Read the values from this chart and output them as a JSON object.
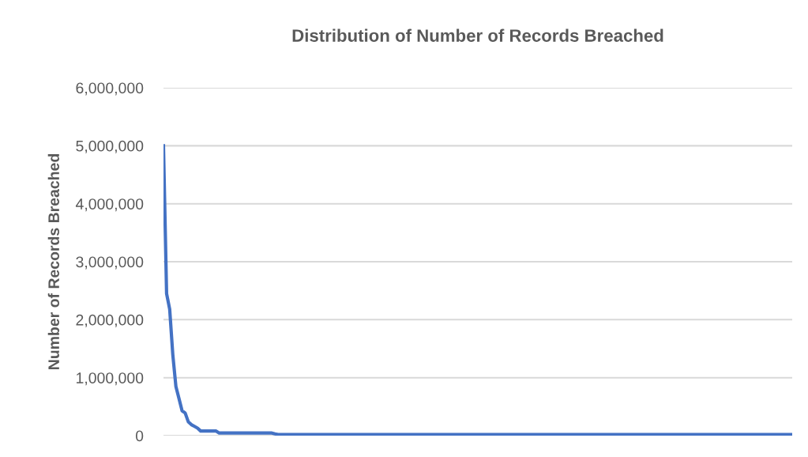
{
  "chart_data": {
    "type": "line",
    "title": "Distribution of Number of Records Breached",
    "ylabel": "Number of Records Breached",
    "categories": [
      null,
      null,
      null,
      null,
      null,
      null,
      null,
      null,
      null,
      null,
      null,
      null,
      null,
      null,
      null,
      null,
      null,
      null,
      null,
      null,
      null,
      null,
      null,
      null,
      null,
      null,
      null,
      null,
      null,
      null,
      null,
      null,
      null,
      null,
      null,
      null,
      null,
      null,
      null,
      null,
      null,
      null,
      null,
      null,
      null,
      null,
      null,
      null,
      null,
      null,
      null,
      null,
      null,
      null,
      null,
      null,
      null,
      null,
      null,
      null,
      null,
      null,
      null,
      null,
      null,
      null,
      null,
      null,
      null,
      null,
      null,
      null,
      null,
      null,
      null,
      null,
      null,
      null,
      null,
      null,
      null,
      null,
      null,
      null,
      null,
      null,
      null,
      null,
      null,
      null,
      null,
      null,
      null,
      null,
      null,
      null,
      null,
      null,
      null,
      null,
      null,
      null,
      null,
      null,
      null,
      null,
      null,
      null,
      null,
      null,
      null,
      null,
      null,
      null,
      null,
      null,
      null,
      null,
      null,
      null,
      null,
      null,
      null,
      null,
      null,
      null,
      null,
      null,
      null,
      null,
      null,
      null,
      null,
      null,
      null,
      null,
      null,
      null,
      null,
      null,
      null,
      null,
      null,
      null,
      null,
      null,
      null,
      null,
      null,
      null,
      null,
      null,
      null,
      null,
      null,
      null,
      null,
      null,
      null,
      null,
      null,
      null,
      null,
      null,
      null,
      null,
      null,
      null,
      null,
      null,
      null,
      null,
      null,
      null,
      null,
      null,
      null,
      null,
      null,
      null,
      null,
      null,
      null,
      null,
      null,
      null,
      null,
      null,
      null,
      null,
      null,
      null,
      null,
      null,
      null,
      null,
      null,
      null,
      null,
      null,
      null,
      null,
      null,
      null
    ],
    "series": [
      {
        "color": "#4472c4",
        "values": [
          5000000,
          2450000,
          2180000,
          1400000,
          850000,
          640000,
          430000,
          390000,
          240000,
          190000,
          160000,
          130000,
          80000,
          80000,
          80000,
          80000,
          80000,
          80000,
          45000,
          45000,
          45000,
          45000,
          45000,
          45000,
          45000,
          45000,
          45000,
          45000,
          45000,
          45000,
          45000,
          45000,
          45000,
          45000,
          45000,
          45000,
          30000,
          20000,
          20000,
          20000,
          20000,
          20000,
          20000,
          20000,
          20000,
          20000,
          20000,
          20000,
          20000,
          20000,
          20000,
          20000,
          20000,
          20000,
          20000,
          20000,
          20000,
          20000,
          20000,
          20000,
          20000,
          20000,
          20000,
          20000,
          20000,
          20000,
          20000,
          20000,
          20000,
          20000,
          20000,
          20000,
          20000,
          20000,
          20000,
          20000,
          20000,
          20000,
          20000,
          20000,
          20000,
          20000,
          20000,
          20000,
          20000,
          20000,
          20000,
          20000,
          20000,
          20000,
          20000,
          20000,
          20000,
          20000,
          20000,
          20000,
          20000,
          20000,
          20000,
          20000,
          20000,
          20000,
          20000,
          20000,
          20000,
          20000,
          20000,
          20000,
          20000,
          20000,
          20000,
          20000,
          20000,
          20000,
          20000,
          20000,
          20000,
          20000,
          20000,
          20000,
          20000,
          20000,
          20000,
          20000,
          20000,
          20000,
          20000,
          20000,
          20000,
          20000,
          20000,
          20000,
          20000,
          20000,
          20000,
          20000,
          20000,
          20000,
          20000,
          20000,
          20000,
          20000,
          20000,
          20000,
          20000,
          20000,
          20000,
          20000,
          20000,
          20000,
          20000,
          20000,
          20000,
          20000,
          20000,
          20000,
          20000,
          20000,
          20000,
          20000,
          20000,
          20000,
          20000,
          20000,
          20000,
          20000,
          20000,
          20000,
          20000,
          20000,
          20000,
          20000,
          20000,
          20000,
          20000,
          20000,
          20000,
          20000,
          20000,
          20000,
          20000,
          20000,
          20000,
          20000,
          20000,
          20000,
          20000,
          20000,
          20000,
          20000,
          20000,
          20000,
          20000,
          20000,
          20000,
          20000,
          20000,
          20000,
          20000,
          20000,
          20000,
          20000,
          20000,
          20000
        ]
      }
    ],
    "ylim": [
      0,
      6000000
    ],
    "yticks": [
      0,
      {
        "value": 1000000,
        "label": "1,000,000"
      },
      {
        "value": 2000000,
        "label": "2,000,000"
      },
      {
        "value": 3000000,
        "label": "3,000,000"
      },
      {
        "value": 4000000,
        "label": "4,000,000"
      },
      {
        "value": 5000000,
        "label": "5,000,000"
      },
      {
        "value": 6000000,
        "label": "6,000,000"
      }
    ],
    "grid": "y",
    "legend": false,
    "marker": "none",
    "line_style": "solid",
    "tick_labels": "y"
  }
}
